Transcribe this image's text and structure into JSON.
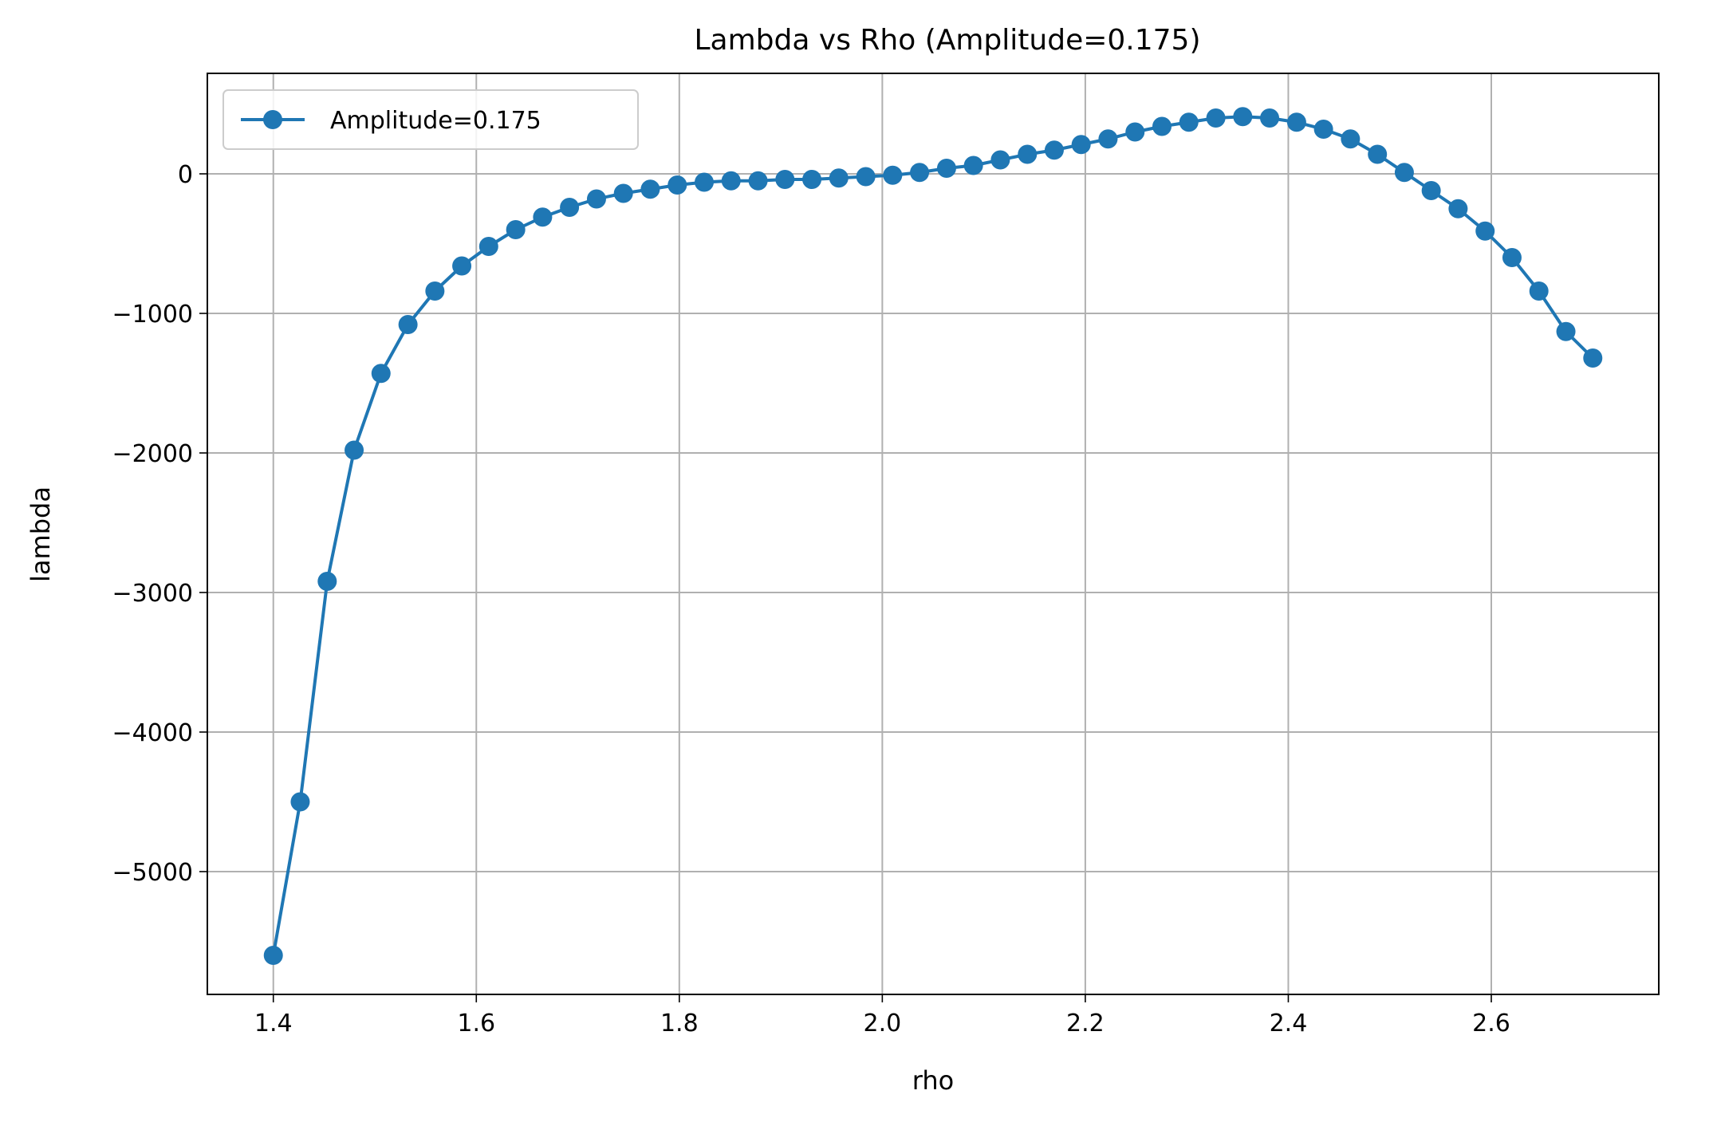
{
  "chart_data": {
    "type": "line",
    "title": "Lambda vs Rho (Amplitude=0.175)",
    "xlabel": "rho",
    "ylabel": "lambda",
    "xlim": [
      1.335,
      2.765
    ],
    "ylim": [
      -5880,
      720
    ],
    "x_ticks": [
      1.4,
      1.6,
      1.8,
      2.0,
      2.2,
      2.4,
      2.6
    ],
    "x_tick_labels": [
      "1.4",
      "1.6",
      "1.8",
      "2.0",
      "2.2",
      "2.4",
      "2.6"
    ],
    "y_ticks": [
      0,
      -1000,
      -2000,
      -3000,
      -4000,
      -5000
    ],
    "y_tick_labels": [
      "0",
      "−1000",
      "−2000",
      "−3000",
      "−4000",
      "−5000"
    ],
    "grid": true,
    "legend": "upper left",
    "color": "#1f77b4",
    "series": [
      {
        "name": "Amplitude=0.175",
        "marker": "circle",
        "x": [
          1.4,
          1.4265,
          1.4531,
          1.4796,
          1.5061,
          1.5327,
          1.5592,
          1.5857,
          1.6122,
          1.6388,
          1.6653,
          1.6918,
          1.7184,
          1.7449,
          1.7714,
          1.798,
          1.8245,
          1.851,
          1.8776,
          1.9041,
          1.9306,
          1.9571,
          1.9837,
          2.0102,
          2.0367,
          2.0633,
          2.0898,
          2.1163,
          2.1429,
          2.1694,
          2.1959,
          2.2224,
          2.249,
          2.2755,
          2.302,
          2.3286,
          2.3551,
          2.3816,
          2.4082,
          2.4347,
          2.4612,
          2.4878,
          2.5143,
          2.5408,
          2.5673,
          2.5939,
          2.6204,
          2.6469,
          2.6735,
          2.7
        ],
        "y": [
          -5600,
          -4500,
          -2920,
          -1980,
          -1430,
          -1080,
          -840,
          -660,
          -520,
          -400,
          -310,
          -240,
          -180,
          -140,
          -110,
          -80,
          -60,
          -50,
          -50,
          -40,
          -40,
          -30,
          -20,
          -10,
          10,
          40,
          60,
          100,
          140,
          170,
          210,
          250,
          300,
          340,
          370,
          400,
          410,
          400,
          370,
          320,
          250,
          140,
          10,
          -120,
          -250,
          -410,
          -600,
          -840,
          -1130,
          -1320
        ]
      }
    ]
  }
}
